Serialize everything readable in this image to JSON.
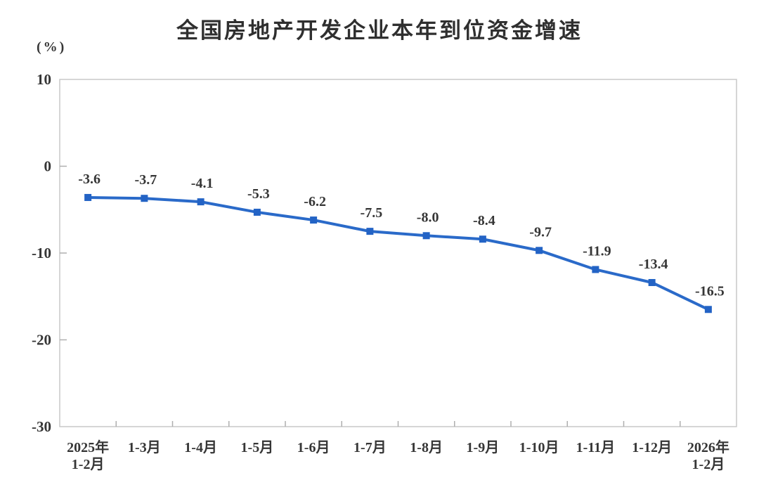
{
  "page": {
    "title": "全国房地产开发企业本年到位资金增速",
    "unit_label": "(%)"
  },
  "colors": {
    "line": "#2A6AC9",
    "marker": "#2363C5",
    "axis_box": "#C9C9C9",
    "tick_mark": "#AFAFAF",
    "label_text": "#363636",
    "title_text": "#2F2F2F",
    "background": "#FFFFFF"
  },
  "chart_data": {
    "type": "line",
    "title": "全国房地产开发企业本年到位资金增速",
    "ylabel": "(%)",
    "xlabel": "",
    "categories": [
      "2025年1-2月",
      "1-3月",
      "1-4月",
      "1-5月",
      "1-6月",
      "1-7月",
      "1-8月",
      "1-9月",
      "1-10月",
      "1-11月",
      "1-12月",
      "2026年1-2月"
    ],
    "category_lines": [
      [
        "2025年",
        "1-2月"
      ],
      [
        "1-3月"
      ],
      [
        "1-4月"
      ],
      [
        "1-5月"
      ],
      [
        "1-6月"
      ],
      [
        "1-7月"
      ],
      [
        "1-8月"
      ],
      [
        "1-9月"
      ],
      [
        "1-10月"
      ],
      [
        "1-11月"
      ],
      [
        "1-12月"
      ],
      [
        "2026年",
        "1-2月"
      ]
    ],
    "values": [
      -3.6,
      -3.7,
      -4.1,
      -5.3,
      -6.2,
      -7.5,
      -8.0,
      -8.4,
      -9.7,
      -11.9,
      -13.4,
      -16.5
    ],
    "data_labels": [
      "-3.6",
      "-3.7",
      "-4.1",
      "-5.3",
      "-6.2",
      "-7.5",
      "-8.0",
      "-8.4",
      "-9.7",
      "-11.9",
      "-13.4",
      "-16.5"
    ],
    "y_ticks": [
      10,
      0,
      -10,
      -20,
      -30
    ],
    "y_tick_labels": [
      "10",
      "0",
      "-10",
      "-20",
      "-30"
    ],
    "ylim": [
      -30,
      10
    ],
    "grid": false,
    "legend": "none",
    "marker_shape": "square",
    "show_data_labels": true
  }
}
